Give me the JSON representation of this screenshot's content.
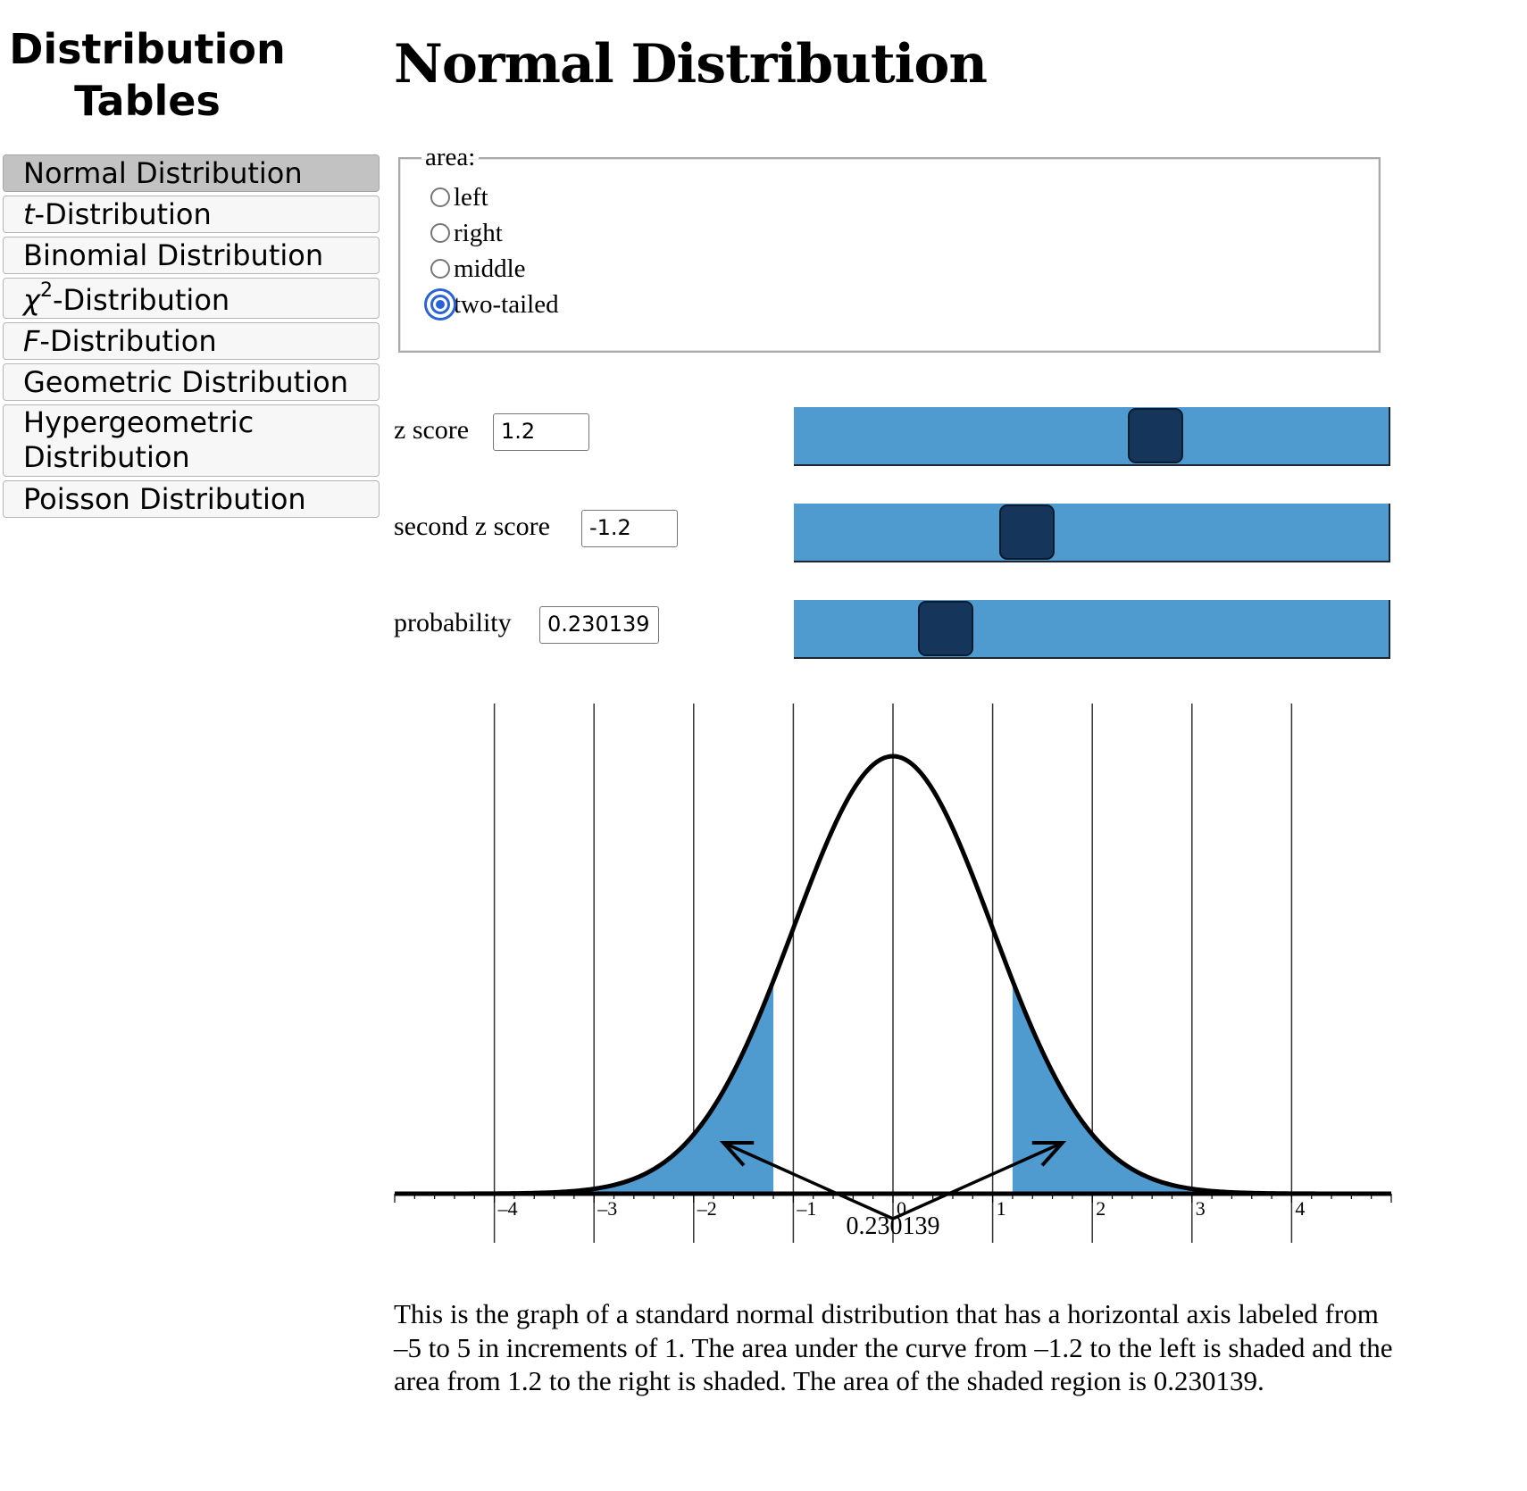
{
  "sidebar": {
    "title_line1": "Distribution",
    "title_line2": "Tables",
    "items": [
      {
        "label": "Normal Distribution",
        "active": true
      },
      {
        "prefix": "t",
        "label": "-Distribution"
      },
      {
        "label": "Binomial Distribution"
      },
      {
        "prefix": "χ",
        "sup": "2",
        "label": "-Distribution"
      },
      {
        "prefix": "F",
        "label": "-Distribution"
      },
      {
        "label": "Geometric Distribution"
      },
      {
        "label_line1": "Hypergeometric",
        "label_line2": "Distribution"
      },
      {
        "label": "Poisson Distribution"
      }
    ]
  },
  "main": {
    "title": "Normal Distribution",
    "area": {
      "legend": "area:",
      "options": [
        "left",
        "right",
        "middle",
        "two-tailed"
      ],
      "selected": "two-tailed"
    },
    "controls": {
      "z_score": {
        "label": "z score",
        "value": "1.2",
        "slider_fraction": 0.62
      },
      "second_z_score": {
        "label": "second z score",
        "value": "-1.2",
        "slider_fraction": 0.38
      },
      "probability": {
        "label": "probability",
        "value": "0.230139",
        "slider_fraction": 0.23
      }
    },
    "slider_color": "#4f9bd0",
    "slider_thumb_color": "#15365a",
    "description": "This is the graph of a standard normal distribution that has a horizontal axis labeled from –5 to 5 in increments of 1. The area under the curve from –1.2 to the left is shaded and the area from 1.2 to the right is shaded. The area of the shaded region is 0.230139."
  },
  "chart_data": {
    "type": "area",
    "distribution": "standard normal",
    "x_range": [
      -5,
      5
    ],
    "x_ticks": [
      "–4",
      "–3",
      "–2",
      "–1",
      "0",
      "1",
      "2",
      "3",
      "4"
    ],
    "x_tick_values": [
      -4,
      -3,
      -2,
      -1,
      0,
      1,
      2,
      3,
      4
    ],
    "shading": "two-tailed",
    "lower_z": -1.2,
    "upper_z": 1.2,
    "probability_label": "0.230139",
    "shade_color": "#4f9bd0",
    "grid": true
  }
}
